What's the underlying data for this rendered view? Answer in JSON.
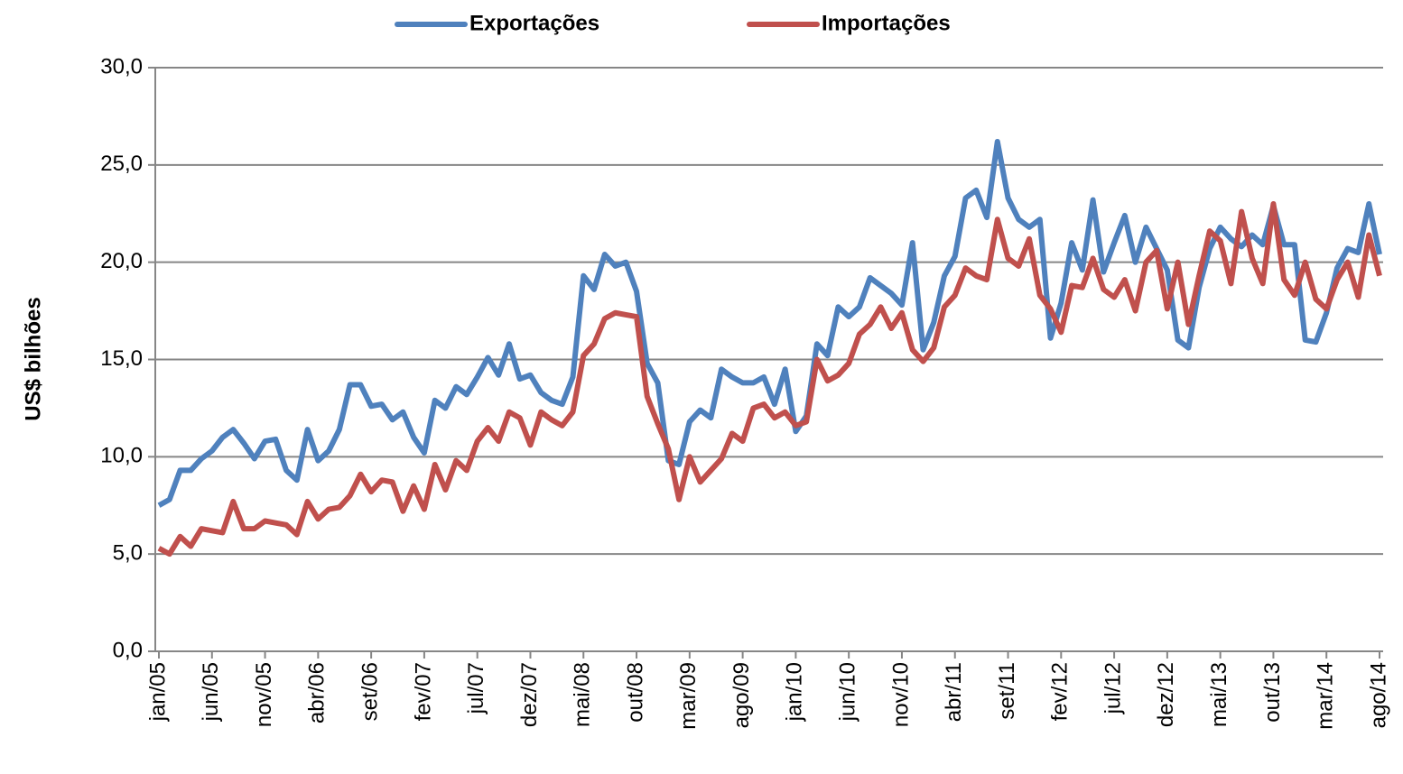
{
  "chart_data": {
    "type": "line",
    "y_label": "US$ bilhões",
    "categories": [
      "jan/05",
      null,
      null,
      null,
      null,
      "jun/05",
      null,
      null,
      null,
      null,
      "nov/05",
      null,
      null,
      null,
      null,
      "abr/06",
      null,
      null,
      null,
      null,
      "set/06",
      null,
      null,
      null,
      null,
      "fev/07",
      null,
      null,
      null,
      null,
      "jul/07",
      null,
      null,
      null,
      null,
      "dez/07",
      null,
      null,
      null,
      null,
      "mai/08",
      null,
      null,
      null,
      null,
      "out/08",
      null,
      null,
      null,
      null,
      "mar/09",
      null,
      null,
      null,
      null,
      "ago/09",
      null,
      null,
      null,
      null,
      "jan/10",
      null,
      null,
      null,
      null,
      "jun/10",
      null,
      null,
      null,
      null,
      "nov/10",
      null,
      null,
      null,
      null,
      "abr/11",
      null,
      null,
      null,
      null,
      "set/11",
      null,
      null,
      null,
      null,
      "fev/12",
      null,
      null,
      null,
      null,
      "jul/12",
      null,
      null,
      null,
      null,
      "dez/12",
      null,
      null,
      null,
      null,
      "mai/13",
      null,
      null,
      null,
      null,
      "out/13",
      null,
      null,
      null,
      null,
      "mar/14",
      null,
      null,
      null,
      null,
      "ago/14"
    ],
    "series": [
      {
        "name": "Exportações",
        "color": "#4f81bd",
        "values": [
          7.5,
          7.8,
          9.3,
          9.3,
          9.9,
          10.3,
          11.0,
          11.4,
          10.7,
          9.9,
          10.8,
          10.9,
          9.3,
          8.8,
          11.4,
          9.8,
          10.3,
          11.4,
          13.7,
          13.7,
          12.6,
          12.7,
          11.9,
          12.3,
          11.0,
          10.2,
          12.9,
          12.5,
          13.6,
          13.2,
          14.1,
          15.1,
          14.2,
          15.8,
          14.0,
          14.2,
          13.3,
          12.9,
          12.7,
          14.1,
          19.3,
          18.6,
          20.4,
          19.8,
          20.0,
          18.5,
          14.8,
          13.8,
          9.8,
          9.6,
          11.8,
          12.4,
          12.0,
          14.5,
          14.1,
          13.8,
          13.8,
          14.1,
          12.7,
          14.5,
          11.3,
          12.1,
          15.8,
          15.2,
          17.7,
          17.2,
          17.7,
          19.2,
          18.8,
          18.4,
          17.8,
          21.0,
          15.5,
          16.9,
          19.3,
          20.3,
          23.3,
          23.7,
          22.3,
          26.2,
          23.3,
          22.2,
          21.8,
          22.2,
          16.1,
          17.9,
          21.0,
          19.6,
          23.2,
          19.5,
          21.0,
          22.4,
          20.0,
          21.8,
          20.7,
          19.6,
          16.0,
          15.6,
          18.7,
          20.7,
          21.8,
          21.2,
          20.8,
          21.4,
          20.9,
          22.9,
          20.9,
          20.9,
          16.0,
          15.9,
          17.4,
          19.7,
          20.7,
          20.5,
          23.0,
          20.4
        ]
      },
      {
        "name": "Importações",
        "color": "#c0504d",
        "values": [
          5.3,
          5.0,
          5.9,
          5.4,
          6.3,
          6.2,
          6.1,
          7.7,
          6.3,
          6.3,
          6.7,
          6.6,
          6.5,
          6.0,
          7.7,
          6.8,
          7.3,
          7.4,
          8.0,
          9.1,
          8.2,
          8.8,
          8.7,
          7.2,
          8.5,
          7.3,
          9.6,
          8.3,
          9.8,
          9.3,
          10.8,
          11.5,
          10.8,
          12.3,
          12.0,
          10.6,
          12.3,
          11.9,
          11.6,
          12.3,
          15.2,
          15.8,
          17.1,
          17.4,
          17.3,
          17.2,
          13.1,
          11.7,
          10.4,
          7.8,
          10.0,
          8.7,
          9.3,
          9.9,
          11.2,
          10.8,
          12.5,
          12.7,
          12.0,
          12.3,
          11.6,
          11.8,
          15.0,
          13.9,
          14.2,
          14.8,
          16.3,
          16.8,
          17.7,
          16.6,
          17.4,
          15.5,
          14.9,
          15.6,
          17.7,
          18.3,
          19.7,
          19.3,
          19.1,
          22.2,
          20.2,
          19.8,
          21.2,
          18.3,
          17.6,
          16.4,
          18.8,
          18.7,
          20.2,
          18.6,
          18.2,
          19.1,
          17.5,
          20.0,
          20.6,
          17.6,
          20.0,
          16.8,
          19.3,
          21.6,
          21.1,
          18.9,
          22.6,
          20.2,
          18.9,
          23.0,
          19.1,
          18.3,
          20.0,
          18.1,
          17.6,
          19.1,
          20.0,
          18.2,
          21.4,
          19.3
        ]
      }
    ],
    "ylim": [
      0,
      30
    ],
    "yticks": [
      {
        "value": 0,
        "label": "0,0"
      },
      {
        "value": 5,
        "label": "5,0"
      },
      {
        "value": 10,
        "label": "10,0"
      },
      {
        "value": 15,
        "label": "15,0"
      },
      {
        "value": 20,
        "label": "20,0"
      },
      {
        "value": 25,
        "label": "25,0"
      },
      {
        "value": 30,
        "label": "30,0"
      }
    ],
    "grid": true,
    "legend": "top"
  }
}
